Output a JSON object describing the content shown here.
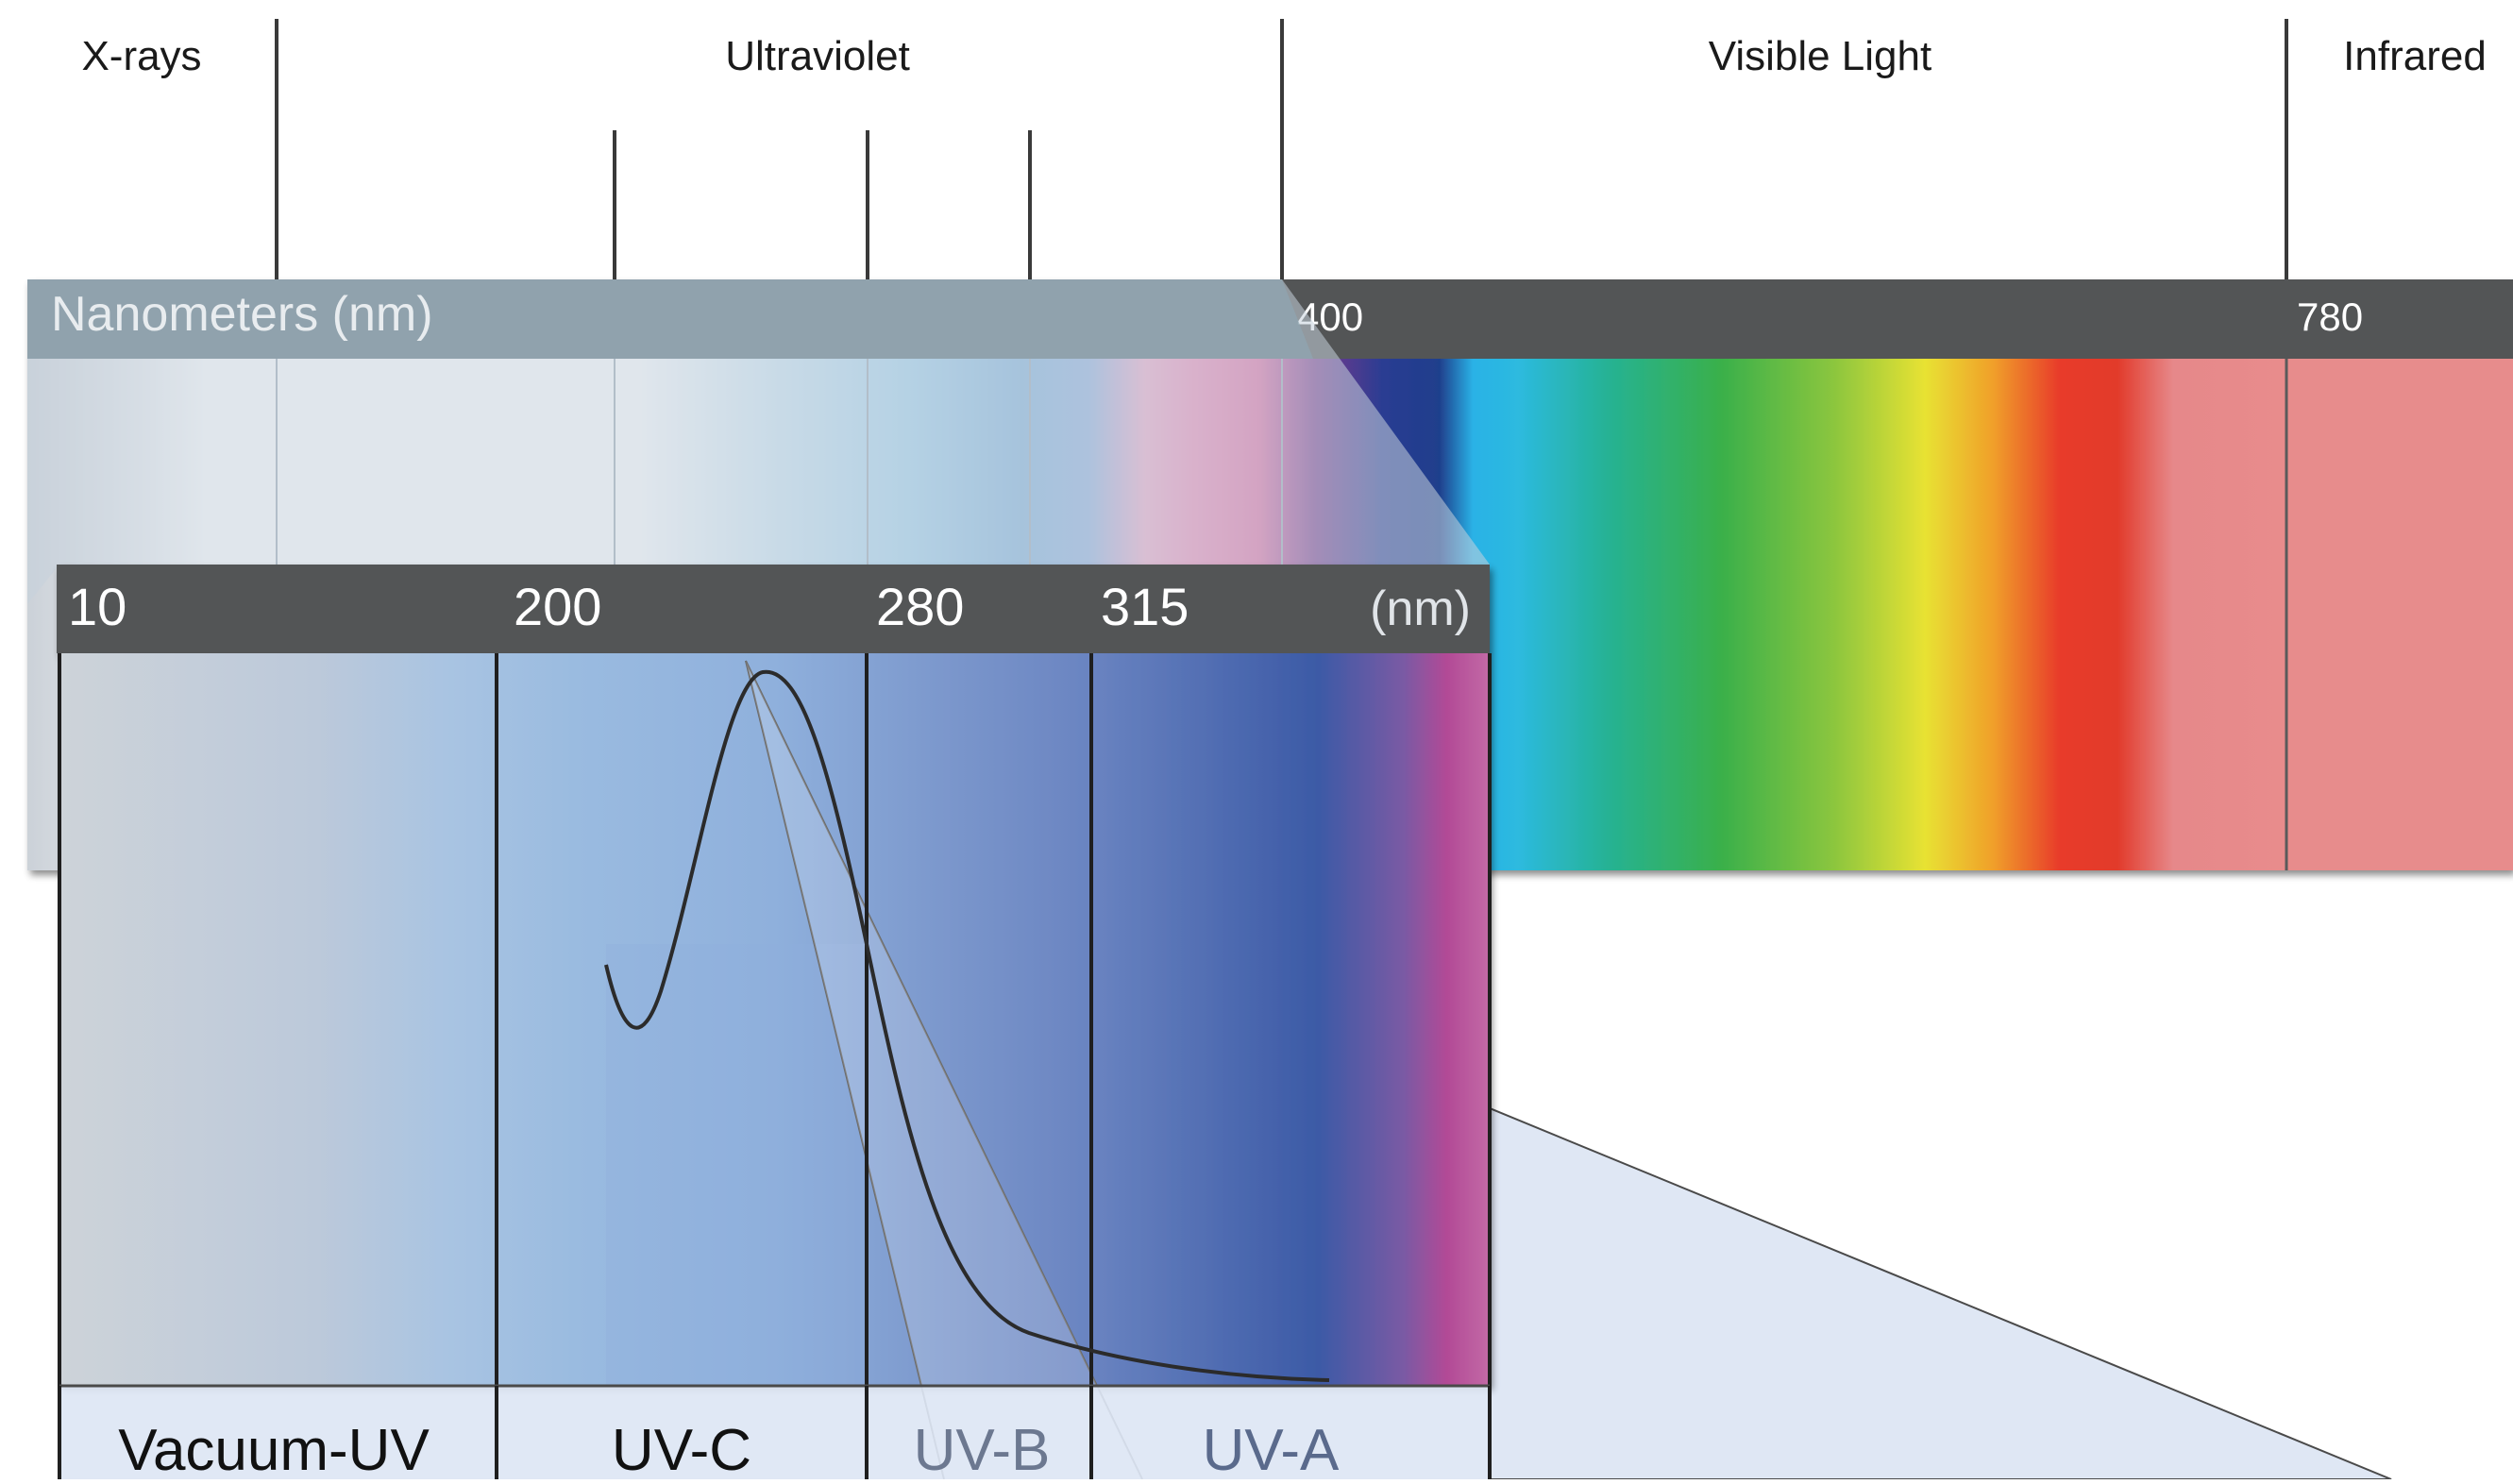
{
  "regions": {
    "xrays": "X-rays",
    "ultraviolet": "Ultraviolet",
    "visible": "Visible Light",
    "infrared": "Infrared"
  },
  "main_scale": {
    "unit_label": "Nanometers (nm)",
    "tick_400": "400",
    "tick_780": "780"
  },
  "uv_scale": {
    "tick_10": "10",
    "tick_200": "200",
    "tick_280": "280",
    "tick_315": "315",
    "unit": "(nm)"
  },
  "bands": {
    "vacuum_uv": "Vacuum-UV",
    "uvc": "UV-C",
    "uvb": "UV-B",
    "uva": "UV-A"
  },
  "colors": {
    "scale_bar": "#535456",
    "infrared": "#e78c8c",
    "curve": "#2b2b2b",
    "callout_fill": "#dde6f4"
  }
}
